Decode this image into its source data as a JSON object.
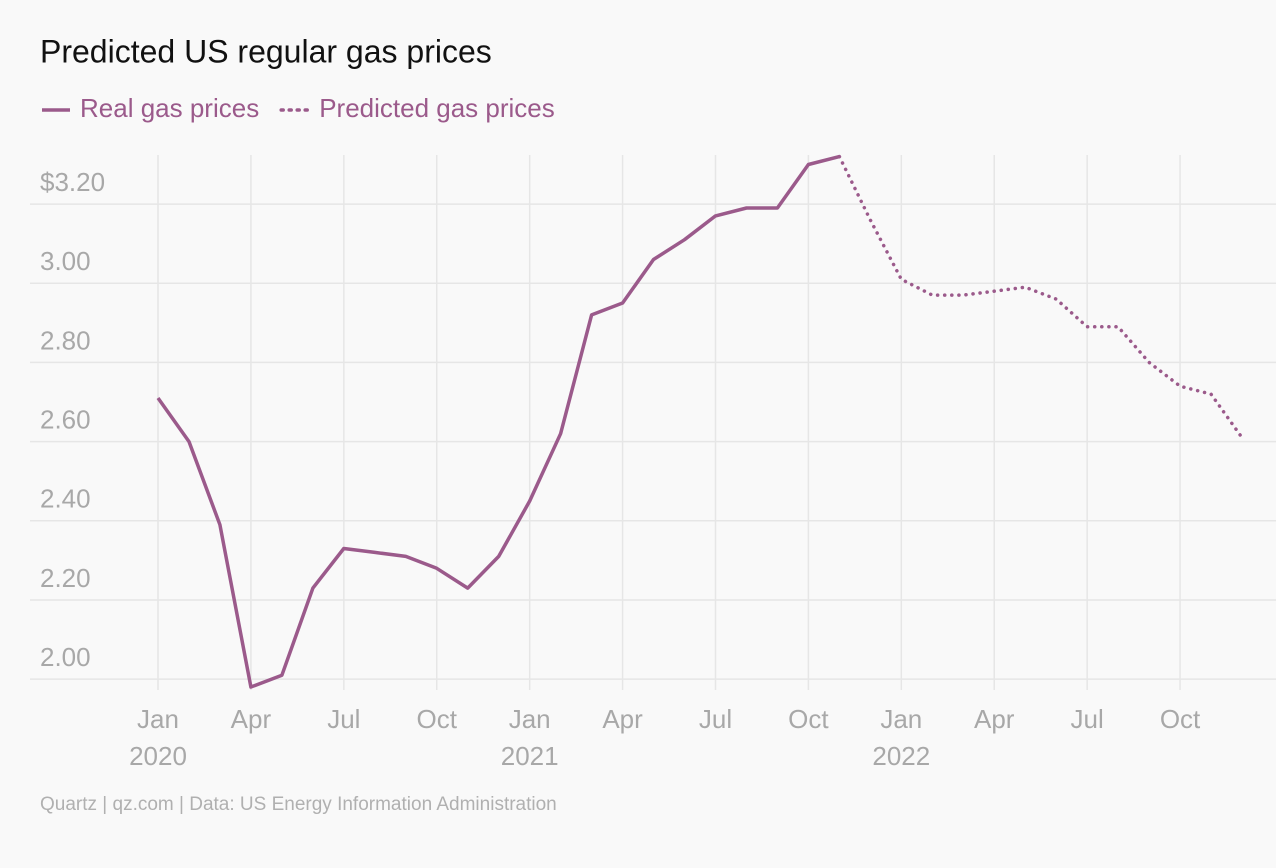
{
  "chart_data": {
    "type": "line",
    "title": "Predicted US regular gas prices",
    "source": "Quartz | qz.com | Data: US Energy Information Administration",
    "x": [
      "2020-01",
      "2020-02",
      "2020-03",
      "2020-04",
      "2020-05",
      "2020-06",
      "2020-07",
      "2020-08",
      "2020-09",
      "2020-10",
      "2020-11",
      "2020-12",
      "2021-01",
      "2021-02",
      "2021-03",
      "2021-04",
      "2021-05",
      "2021-06",
      "2021-07",
      "2021-08",
      "2021-09",
      "2021-10",
      "2021-11",
      "2021-12",
      "2022-01",
      "2022-02",
      "2022-03",
      "2022-04",
      "2022-05",
      "2022-06",
      "2022-07",
      "2022-08",
      "2022-09",
      "2022-10",
      "2022-11",
      "2022-12"
    ],
    "series": [
      {
        "name": "Real gas prices",
        "color": "#9b5a8b",
        "dash": "solid",
        "values": [
          2.71,
          2.6,
          2.39,
          1.98,
          2.01,
          2.23,
          2.33,
          2.32,
          2.31,
          2.28,
          2.23,
          2.31,
          2.45,
          2.62,
          2.92,
          2.95,
          3.06,
          3.11,
          3.17,
          3.19,
          3.19,
          3.3,
          3.32,
          null,
          null,
          null,
          null,
          null,
          null,
          null,
          null,
          null,
          null,
          null,
          null,
          null
        ]
      },
      {
        "name": "Predicted gas prices",
        "color": "#9b5a8b",
        "dash": "dotted",
        "values": [
          null,
          null,
          null,
          null,
          null,
          null,
          null,
          null,
          null,
          null,
          null,
          null,
          null,
          null,
          null,
          null,
          null,
          null,
          null,
          null,
          null,
          null,
          3.32,
          3.16,
          3.01,
          2.97,
          2.97,
          2.98,
          2.99,
          2.96,
          2.89,
          2.89,
          2.8,
          2.74,
          2.72,
          2.61
        ]
      }
    ],
    "ylim": [
      1.97,
      3.33
    ],
    "yticks": [
      {
        "value": 2.0,
        "label": "2.00"
      },
      {
        "value": 2.2,
        "label": "2.20"
      },
      {
        "value": 2.4,
        "label": "2.40"
      },
      {
        "value": 2.6,
        "label": "2.60"
      },
      {
        "value": 2.8,
        "label": "2.80"
      },
      {
        "value": 3.0,
        "label": "3.00"
      },
      {
        "value": 3.2,
        "label": "$3.20"
      }
    ],
    "xticks": [
      {
        "value": "2020-01",
        "label": "Jan\n2020"
      },
      {
        "value": "2020-04",
        "label": "Apr"
      },
      {
        "value": "2020-07",
        "label": "Jul"
      },
      {
        "value": "2020-10",
        "label": "Oct"
      },
      {
        "value": "2021-01",
        "label": "Jan\n2021"
      },
      {
        "value": "2021-04",
        "label": "Apr"
      },
      {
        "value": "2021-07",
        "label": "Jul"
      },
      {
        "value": "2021-10",
        "label": "Oct"
      },
      {
        "value": "2022-01",
        "label": "Jan\n2022"
      },
      {
        "value": "2022-04",
        "label": "Apr"
      },
      {
        "value": "2022-07",
        "label": "Jul"
      },
      {
        "value": "2022-10",
        "label": "Oct"
      }
    ],
    "grid": true,
    "legend": "top-left"
  }
}
